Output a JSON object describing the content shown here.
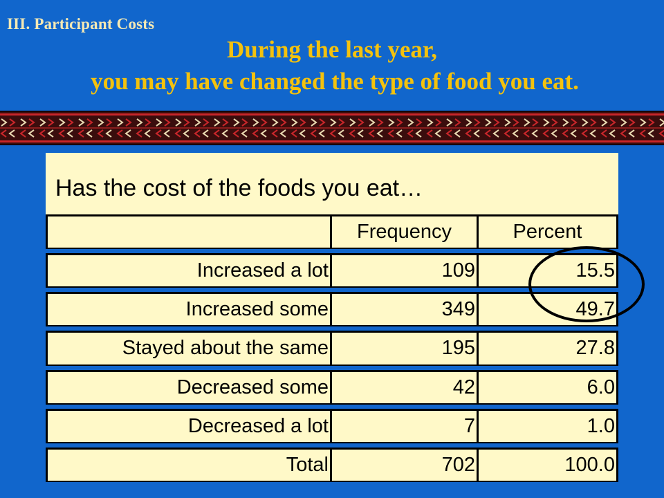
{
  "slide": {
    "section_label": "III.  Participant Costs",
    "heading_line1": "During the last year,",
    "heading_line2": "you may have changed the type of food you eat."
  },
  "table": {
    "title": "Has the cost of the foods you eat…",
    "headers": [
      "",
      "Frequency",
      "Percent"
    ],
    "rows": [
      {
        "label": "Increased a lot",
        "frequency": "109",
        "percent": "15.5"
      },
      {
        "label": "Increased some",
        "frequency": "349",
        "percent": "49.7"
      },
      {
        "label": "Stayed about the same",
        "frequency": "195",
        "percent": "27.8"
      },
      {
        "label": "Decreased some",
        "frequency": "42",
        "percent": "6.0"
      },
      {
        "label": "Decreased a lot",
        "frequency": "7",
        "percent": "1.0"
      },
      {
        "label": "Total",
        "frequency": "702",
        "percent": "100.0"
      }
    ]
  },
  "colors": {
    "background": "#1166cc",
    "heading": "#f4c20d",
    "section_label": "#f4e9b4",
    "table_fill": "#fff9c8",
    "band_dark": "#3a0d0d",
    "band_red": "#c8262a",
    "band_light": "#e8d8b0"
  }
}
